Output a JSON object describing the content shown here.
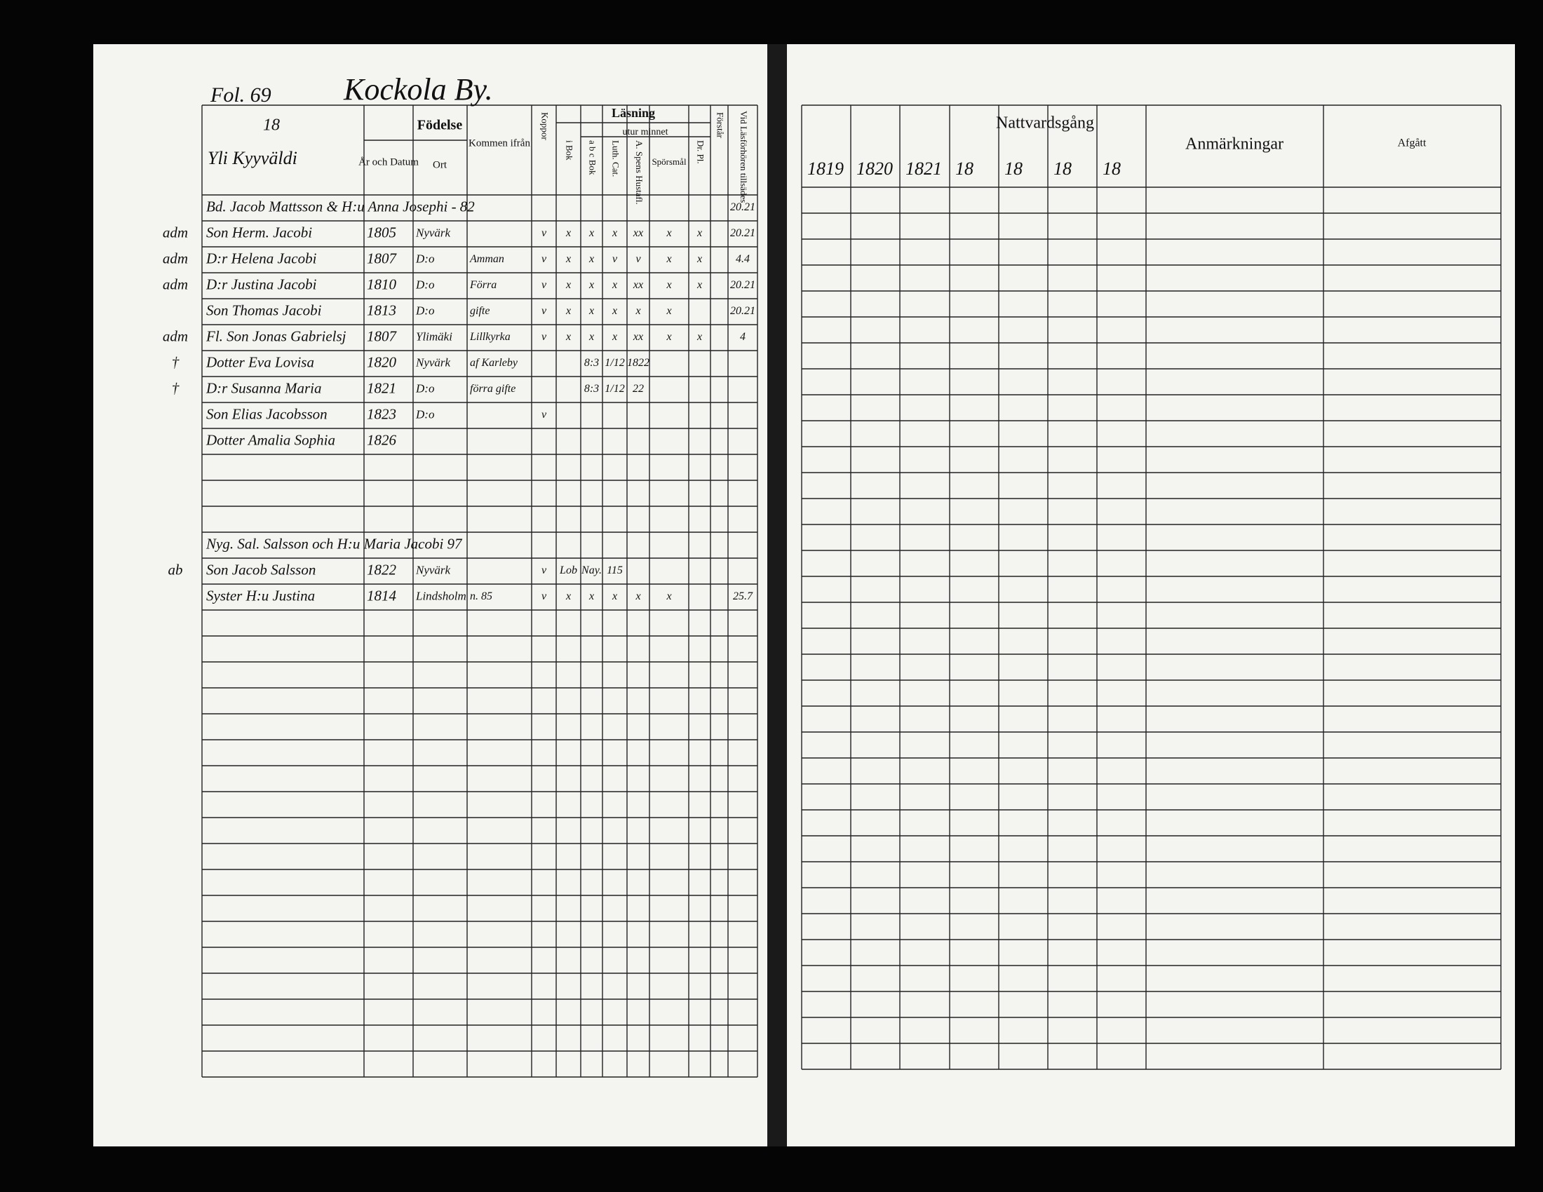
{
  "left_page": {
    "folio": "Fol. 69",
    "village": "Kockola By.",
    "number": "18",
    "farm": "Yli Kyyväldi",
    "headers": {
      "birth": "Födelse",
      "birth_date": "År och Datum",
      "birth_place": "Ort",
      "came_from": "Kommen ifrån",
      "smallpox": "Koppor",
      "reading": "Läsning",
      "by_heart": "utur minnet",
      "in_book": "i Bok",
      "abc_book": "a b c Bok",
      "catechism": "Luth. Cat.",
      "house_table": "A. Spens Hustafl.",
      "questions": "Spörsmål",
      "dr_pl": "Dr. Pl.",
      "understands": "Förstår",
      "hearings": "Vid Läsförhören tillsädes"
    },
    "rows": [
      {
        "name": "Bd. Jacob Mattsson & H:u Anna Josephi - 82",
        "marks": [
          null,
          null,
          null,
          null,
          null,
          null,
          null,
          null,
          "20.21"
        ]
      },
      {
        "margin": "adm",
        "name": "Son Herm. Jacobi",
        "date": "1805",
        "place": "Nyvärk",
        "marks": [
          "v",
          "x",
          "x",
          "x",
          "xx",
          "x",
          "x",
          null,
          "20.21"
        ]
      },
      {
        "margin": "adm",
        "name": "D:r Helena Jacobi",
        "date": "1807",
        "place": "D:o",
        "from": "Amman",
        "marks": [
          "v",
          "x",
          "x",
          "v",
          "v",
          "x",
          "x",
          null,
          "4.4"
        ]
      },
      {
        "margin": "adm",
        "name": "D:r Justina Jacobi",
        "date": "1810",
        "place": "D:o",
        "from": "Förra",
        "marks": [
          "v",
          "x",
          "x",
          "x",
          "xx",
          "x",
          "x",
          null,
          "20.21"
        ]
      },
      {
        "name": "Son Thomas Jacobi",
        "date": "1813",
        "place": "D:o",
        "from": "gifte",
        "marks": [
          "v",
          "x",
          "x",
          "x",
          "x",
          "x",
          null,
          null,
          "20.21"
        ]
      },
      {
        "margin": "adm",
        "name": "Fl. Son Jonas Gabrielsj",
        "date": "1807",
        "place": "Ylimäki",
        "from": "Lillkyrka",
        "marks": [
          "v",
          "x",
          "x",
          "x",
          "xx",
          "x",
          "x",
          null,
          "4"
        ]
      },
      {
        "margin": "†",
        "name": "Dotter Eva Lovisa",
        "date": "1820",
        "place": "Nyvärk",
        "from": "af Karleby",
        "marks": [
          null,
          null,
          "8:3",
          "1/12",
          "1822"
        ]
      },
      {
        "margin": "†",
        "name": "D:r Susanna Maria",
        "date": "1821",
        "place": "D:o",
        "from": "förra gifte",
        "marks": [
          null,
          null,
          "8:3",
          "1/12",
          "22"
        ]
      },
      {
        "name": "Son Elias Jacobsson",
        "date": "1823",
        "place": "D:o",
        "marks": [
          "v"
        ]
      },
      {
        "name": "Dotter Amalia Sophia",
        "date": "1826"
      },
      null,
      null,
      null,
      {
        "name": "Nyg. Sal. Salsson och H:u Maria Jacobi 97"
      },
      {
        "margin": "ab",
        "name": "Son Jacob Salsson",
        "date": "1822",
        "place": "Nyvärk",
        "marks": [
          "v",
          "Lob",
          "Nay.",
          "115"
        ]
      },
      {
        "name": "Syster H:u Justina",
        "date": "1814",
        "place": "Lindsholm",
        "from": "n. 85",
        "marks": [
          "v",
          "x",
          "x",
          "x",
          "x",
          "x",
          null,
          null,
          "25.7"
        ]
      }
    ]
  },
  "right_page": {
    "headers": {
      "communion": "Nattvardsgång",
      "years": [
        "1819",
        "1820",
        "1821",
        "18",
        "18",
        "18",
        "18"
      ],
      "remarks": "Anmärkningar",
      "departed": "Afgått"
    }
  }
}
